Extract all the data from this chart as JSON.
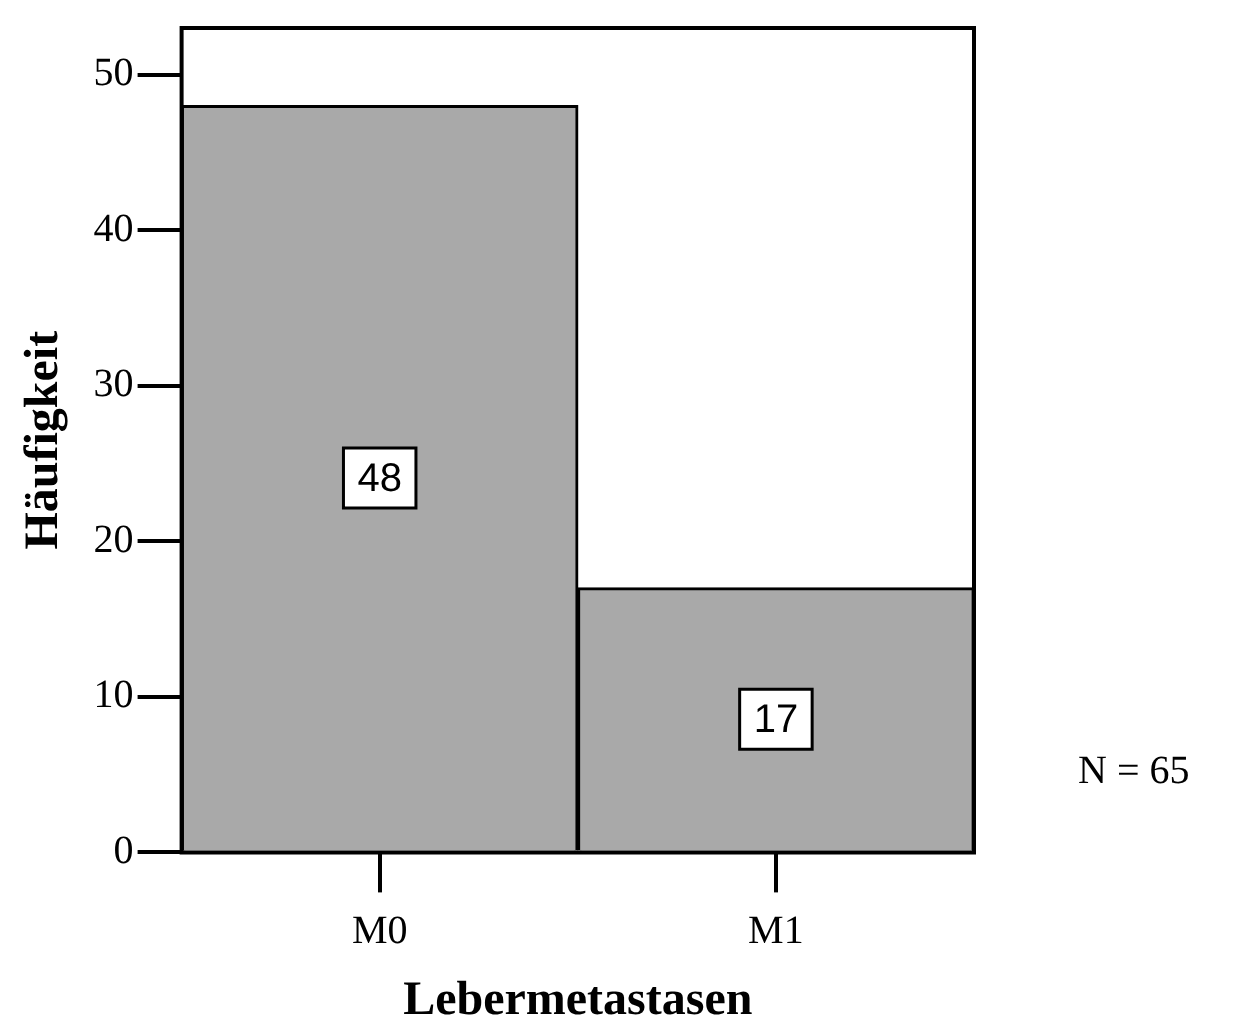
{
  "chart_data": {
    "type": "bar",
    "xlabel": "Lebermetastasen",
    "ylabel": "Häufigkeit",
    "categories": [
      "M0",
      "M1"
    ],
    "values": [
      48,
      17
    ],
    "color": "#a9a9a9",
    "ylim": [
      0,
      53
    ],
    "yticks": [
      0,
      10,
      20,
      30,
      40,
      50
    ],
    "grid": false,
    "legend": false,
    "data_labels": true,
    "annotations": [
      "N = 65"
    ]
  }
}
